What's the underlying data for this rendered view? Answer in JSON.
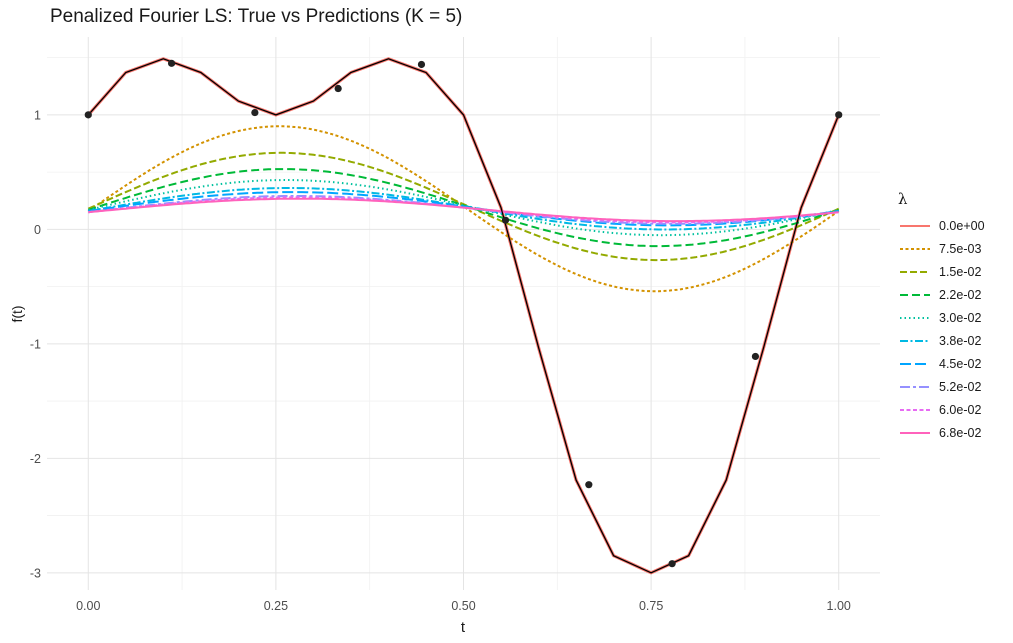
{
  "chart_data": {
    "type": "line",
    "title": "Penalized Fourier LS: True vs Predictions (K = 5)",
    "xlabel": "t",
    "ylabel": "f(t)",
    "xlim": [
      -0.055,
      1.055
    ],
    "ylim": [
      -3.15,
      1.68
    ],
    "x_ticks": [
      0,
      0.25,
      0.5,
      0.75,
      1
    ],
    "x_tick_labels": [
      "0.00",
      "0.25",
      "0.50",
      "0.75",
      "1.00"
    ],
    "y_ticks": [
      -3,
      -2,
      -1,
      0,
      1
    ],
    "y_tick_labels": [
      "-3",
      "-2",
      "-1",
      "0",
      "1"
    ],
    "grid": true,
    "legend_position": "right",
    "legend_title": "λ",
    "true_function": {
      "color": "#000000",
      "x": [
        0,
        0.05,
        0.1,
        0.15,
        0.2,
        0.25,
        0.3,
        0.35,
        0.4,
        0.45,
        0.5,
        0.55,
        0.6,
        0.65,
        0.7,
        0.75,
        0.8,
        0.85,
        0.9,
        0.95,
        1.0
      ],
      "y": [
        1.0,
        1.37,
        1.49,
        1.37,
        1.12,
        1.0,
        1.12,
        1.37,
        1.49,
        1.37,
        1.0,
        0.19,
        -1.03,
        -2.19,
        -2.85,
        -3.0,
        -2.85,
        -2.19,
        -1.03,
        0.19,
        1.0
      ]
    },
    "observations": {
      "color": "#222222",
      "x": [
        0.0,
        0.111,
        0.222,
        0.333,
        0.444,
        0.556,
        0.667,
        0.778,
        0.889,
        1.0
      ],
      "y": [
        1.0,
        1.45,
        1.02,
        1.23,
        1.44,
        0.08,
        -2.23,
        -2.92,
        -1.11,
        1.0
      ]
    },
    "series": [
      {
        "name": "0.0e+00",
        "color": "#F8766D",
        "dash": "solid",
        "amp": 1.0,
        "offset": 0.0
      },
      {
        "name": "7.5e-03",
        "color": "#D39200",
        "dash": "3,2.5",
        "amp": 0.6,
        "offset": 0.18
      },
      {
        "name": "1.5e-02",
        "color": "#93AA00",
        "dash": "7,3",
        "amp": 0.39,
        "offset": 0.2
      },
      {
        "name": "2.2e-02",
        "color": "#00BA38",
        "dash": "8,4",
        "amp": 0.28,
        "offset": 0.19
      },
      {
        "name": "3.0e-02",
        "color": "#00C19F",
        "dash": "1.5,3",
        "amp": 0.2,
        "offset": 0.19
      },
      {
        "name": "3.8e-02",
        "color": "#00B9E3",
        "dash": "8,2.5,2,2.5",
        "amp": 0.15,
        "offset": 0.18
      },
      {
        "name": "4.5e-02",
        "color": "#00A5FF",
        "dash": "11,4",
        "amp": 0.12,
        "offset": 0.18
      },
      {
        "name": "5.2e-02",
        "color": "#9590FF",
        "dash": "10,3,3,3",
        "amp": 0.1,
        "offset": 0.17
      },
      {
        "name": "6.0e-02",
        "color": "#E76BF3",
        "dash": "4,2.5",
        "amp": 0.09,
        "offset": 0.17
      },
      {
        "name": "6.8e-02",
        "color": "#FF62BC",
        "dash": "solid",
        "amp": 0.08,
        "offset": 0.17
      }
    ]
  }
}
